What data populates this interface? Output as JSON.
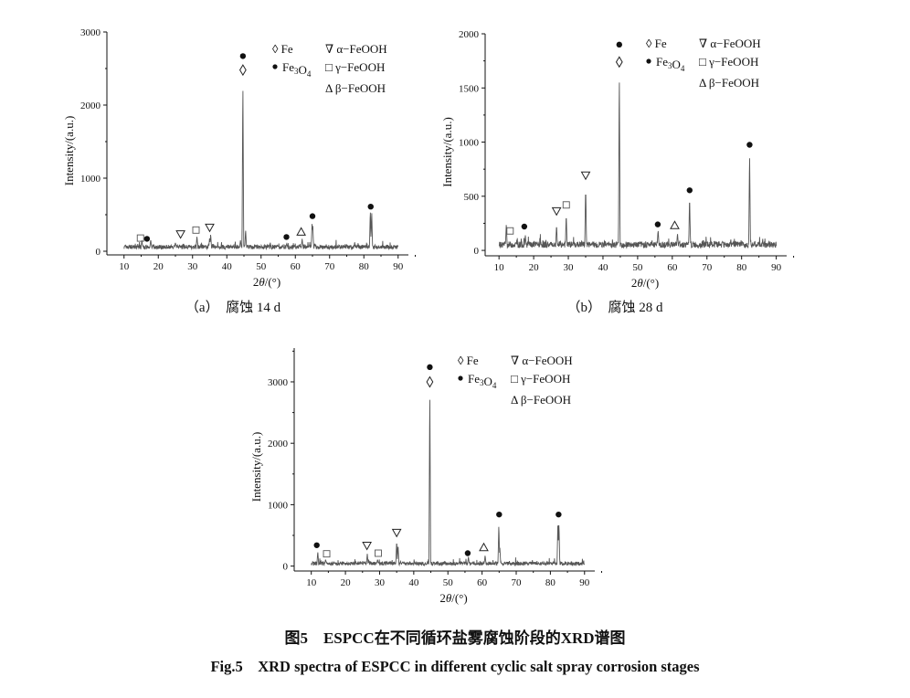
{
  "figure": {
    "caption_cn": "图5　ESPCC在不同循环盐雾腐蚀阶段的XRD谱图",
    "caption_en": "Fig.5　XRD spectra of ESPCC in different cyclic salt spray corrosion stages"
  },
  "legend": {
    "fe": "◊ Fe",
    "fe3o4": "Fe3O4",
    "a": "∇ α−FeOOH",
    "g": "□ γ−FeOOH",
    "b": "Δ β−FeOOH"
  },
  "chart_data": [
    {
      "type": "line",
      "subtitle": "（a）　腐蚀 14 d",
      "xlabel": "2θ/(°)",
      "ylabel": "Intensity/(a.u.)",
      "xlim": [
        5,
        93
      ],
      "ylim": [
        -50,
        3000
      ],
      "xticks": [
        10,
        20,
        30,
        40,
        50,
        60,
        70,
        80,
        90
      ],
      "yticks": [
        0,
        1000,
        2000,
        3000
      ],
      "baseline": 55,
      "noise": 45,
      "series": [
        {
          "x": [
            15.2,
            17.8,
            25.0,
            31.3,
            35.0,
            35.3,
            44.0,
            44.7,
            45.5,
            57.5,
            62.0,
            64.9,
            65.1,
            81.9,
            82.3
          ],
          "y": [
            150,
            160,
            120,
            210,
            190,
            240,
            150,
            2380,
            300,
            110,
            170,
            400,
            370,
            570,
            560
          ]
        }
      ],
      "markers": [
        {
          "x": 14.8,
          "y": 180,
          "sym": "sq"
        },
        {
          "x": 16.7,
          "y": 170,
          "sym": "dot"
        },
        {
          "x": 26.5,
          "y": 230,
          "sym": "tri-down"
        },
        {
          "x": 31.0,
          "y": 290,
          "sym": "sq"
        },
        {
          "x": 35.0,
          "y": 320,
          "sym": "tri-down"
        },
        {
          "x": 44.7,
          "y": 2480,
          "sym": "dia"
        },
        {
          "x": 44.7,
          "y": 2670,
          "sym": "dot"
        },
        {
          "x": 57.4,
          "y": 195,
          "sym": "dot"
        },
        {
          "x": 61.7,
          "y": 270,
          "sym": "tri-up"
        },
        {
          "x": 65.0,
          "y": 480,
          "sym": "dot"
        },
        {
          "x": 82.0,
          "y": 610,
          "sym": "dot"
        }
      ]
    },
    {
      "type": "line",
      "subtitle": "（b）　腐蚀 28 d",
      "xlabel": "2θ/(°)",
      "ylabel": "Intensity/(a.u.)",
      "xlim": [
        6,
        93
      ],
      "ylim": [
        -50,
        2000
      ],
      "xticks": [
        10,
        20,
        30,
        40,
        50,
        60,
        70,
        80,
        90
      ],
      "yticks": [
        0,
        500,
        1000,
        1500,
        2000
      ],
      "baseline": 50,
      "noise": 45,
      "series": [
        {
          "x": [
            12.1,
            17.6,
            26.6,
            29.4,
            35.0,
            44.7,
            55.9,
            61.5,
            65.0,
            82.3
          ],
          "y": [
            250,
            140,
            240,
            340,
            600,
            1680,
            190,
            160,
            510,
            920
          ]
        }
      ],
      "markers": [
        {
          "x": 13.2,
          "y": 180,
          "sym": "sq"
        },
        {
          "x": 17.3,
          "y": 220,
          "sym": "dot"
        },
        {
          "x": 26.6,
          "y": 360,
          "sym": "tri-down"
        },
        {
          "x": 29.4,
          "y": 420,
          "sym": "sq"
        },
        {
          "x": 35.0,
          "y": 690,
          "sym": "tri-down"
        },
        {
          "x": 44.7,
          "y": 1740,
          "sym": "dia"
        },
        {
          "x": 44.7,
          "y": 1900,
          "sym": "dot"
        },
        {
          "x": 55.8,
          "y": 240,
          "sym": "dot"
        },
        {
          "x": 60.7,
          "y": 235,
          "sym": "tri-up"
        },
        {
          "x": 65.0,
          "y": 555,
          "sym": "dot"
        },
        {
          "x": 82.3,
          "y": 975,
          "sym": "dot"
        }
      ]
    },
    {
      "type": "line",
      "xlabel": "2θ/(°)",
      "ylabel": "Intensity/(a.u.)",
      "xlim": [
        5,
        93
      ],
      "ylim": [
        -80,
        3550
      ],
      "xticks": [
        10,
        20,
        30,
        40,
        50,
        60,
        70,
        80,
        90
      ],
      "yticks": [
        0,
        1000,
        2000,
        3000
      ],
      "baseline": 40,
      "noise": 45,
      "series": [
        {
          "x": [
            11.9,
            14.2,
            26.4,
            29.4,
            35.0,
            35.4,
            44.7,
            56.0,
            60.9,
            64.9,
            65.2,
            82.2,
            82.5
          ],
          "y": [
            240,
            110,
            200,
            110,
            420,
            360,
            2940,
            150,
            180,
            690,
            300,
            770,
            720
          ]
        }
      ],
      "markers": [
        {
          "x": 11.6,
          "y": 340,
          "sym": "dot"
        },
        {
          "x": 14.5,
          "y": 200,
          "sym": "sq"
        },
        {
          "x": 26.3,
          "y": 330,
          "sym": "tri-down"
        },
        {
          "x": 29.6,
          "y": 210,
          "sym": "sq"
        },
        {
          "x": 35.0,
          "y": 540,
          "sym": "tri-down"
        },
        {
          "x": 44.7,
          "y": 3000,
          "sym": "dia"
        },
        {
          "x": 44.7,
          "y": 3240,
          "sym": "dot"
        },
        {
          "x": 55.8,
          "y": 210,
          "sym": "dot"
        },
        {
          "x": 60.5,
          "y": 310,
          "sym": "tri-up"
        },
        {
          "x": 65.0,
          "y": 840,
          "sym": "dot"
        },
        {
          "x": 82.4,
          "y": 840,
          "sym": "dot"
        }
      ]
    }
  ]
}
